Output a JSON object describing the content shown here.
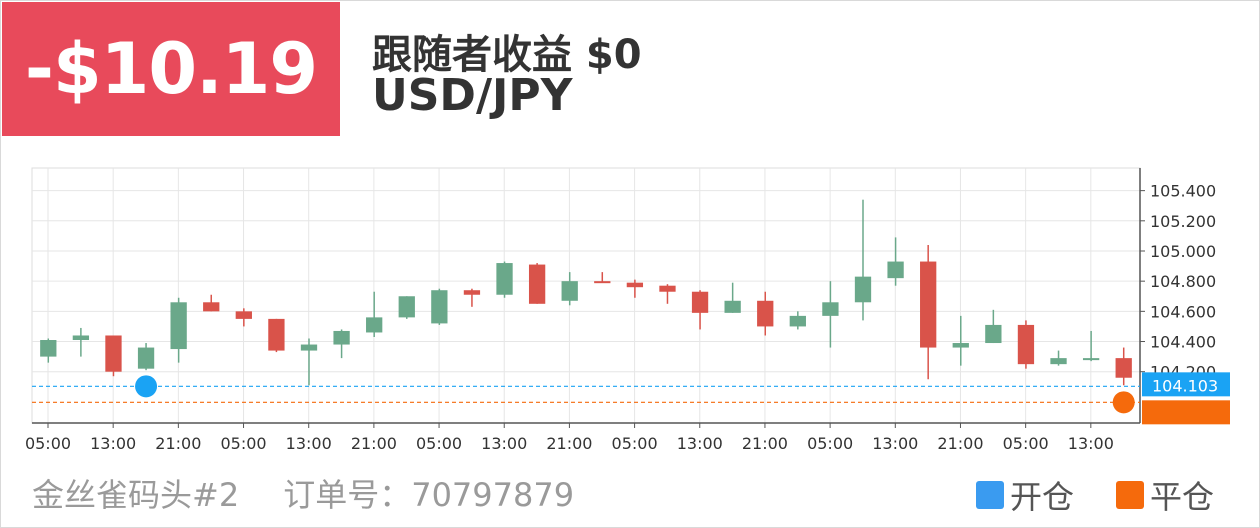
{
  "header": {
    "pnl": "-$10.19",
    "follower_profit": "跟随者收益 $0",
    "symbol": "USD/JPY"
  },
  "footer": {
    "trader": "金丝雀码头#2",
    "order_label": "订单号：",
    "order_id": "70797879"
  },
  "legend": {
    "open_label": "开仓",
    "close_label": "平仓"
  },
  "colors": {
    "pnl_bg": "#e84a5b",
    "up": "#6aa88a",
    "down": "#d9534a",
    "open": "#1aa3f4",
    "close": "#f56a0c"
  },
  "chart_data": {
    "type": "candlestick",
    "x_tick_labels": [
      "05:00",
      "13:00",
      "21:00",
      "05:00",
      "13:00",
      "21:00",
      "05:00",
      "13:00",
      "21:00",
      "05:00",
      "13:00",
      "21:00",
      "05:00",
      "13:00",
      "21:00",
      "05:00",
      "13:00"
    ],
    "y_tick_labels": [
      "104.200",
      "104.400",
      "104.600",
      "104.800",
      "105.000",
      "105.200",
      "105.400"
    ],
    "ylim": [
      103.86,
      105.55
    ],
    "candles": [
      {
        "o": 104.3,
        "h": 104.42,
        "l": 104.26,
        "c": 104.41
      },
      {
        "o": 104.41,
        "h": 104.49,
        "l": 104.3,
        "c": 104.44
      },
      {
        "o": 104.44,
        "h": 104.44,
        "l": 104.17,
        "c": 104.2
      },
      {
        "o": 104.22,
        "h": 104.39,
        "l": 104.21,
        "c": 104.36
      },
      {
        "o": 104.35,
        "h": 104.69,
        "l": 104.26,
        "c": 104.66
      },
      {
        "o": 104.66,
        "h": 104.71,
        "l": 104.6,
        "c": 104.6
      },
      {
        "o": 104.6,
        "h": 104.62,
        "l": 104.5,
        "c": 104.55
      },
      {
        "o": 104.55,
        "h": 104.55,
        "l": 104.33,
        "c": 104.34
      },
      {
        "o": 104.34,
        "h": 104.42,
        "l": 104.11,
        "c": 104.38
      },
      {
        "o": 104.38,
        "h": 104.48,
        "l": 104.29,
        "c": 104.47
      },
      {
        "o": 104.46,
        "h": 104.73,
        "l": 104.43,
        "c": 104.56
      },
      {
        "o": 104.56,
        "h": 104.7,
        "l": 104.55,
        "c": 104.7
      },
      {
        "o": 104.52,
        "h": 104.75,
        "l": 104.51,
        "c": 104.74
      },
      {
        "o": 104.74,
        "h": 104.75,
        "l": 104.63,
        "c": 104.71
      },
      {
        "o": 104.71,
        "h": 104.93,
        "l": 104.69,
        "c": 104.92
      },
      {
        "o": 104.91,
        "h": 104.92,
        "l": 104.65,
        "c": 104.65
      },
      {
        "o": 104.67,
        "h": 104.86,
        "l": 104.64,
        "c": 104.8
      },
      {
        "o": 104.8,
        "h": 104.86,
        "l": 104.79,
        "c": 104.79
      },
      {
        "o": 104.79,
        "h": 104.81,
        "l": 104.69,
        "c": 104.76
      },
      {
        "o": 104.77,
        "h": 104.78,
        "l": 104.65,
        "c": 104.73
      },
      {
        "o": 104.73,
        "h": 104.74,
        "l": 104.48,
        "c": 104.59
      },
      {
        "o": 104.59,
        "h": 104.79,
        "l": 104.59,
        "c": 104.67
      },
      {
        "o": 104.67,
        "h": 104.73,
        "l": 104.44,
        "c": 104.5
      },
      {
        "o": 104.5,
        "h": 104.6,
        "l": 104.48,
        "c": 104.57
      },
      {
        "o": 104.57,
        "h": 104.8,
        "l": 104.36,
        "c": 104.66
      },
      {
        "o": 104.66,
        "h": 105.34,
        "l": 104.54,
        "c": 104.83
      },
      {
        "o": 104.82,
        "h": 105.09,
        "l": 104.77,
        "c": 104.93
      },
      {
        "o": 104.93,
        "h": 105.04,
        "l": 104.15,
        "c": 104.36
      },
      {
        "o": 104.36,
        "h": 104.57,
        "l": 104.24,
        "c": 104.39
      },
      {
        "o": 104.39,
        "h": 104.61,
        "l": 104.39,
        "c": 104.51
      },
      {
        "o": 104.51,
        "h": 104.54,
        "l": 104.22,
        "c": 104.25
      },
      {
        "o": 104.25,
        "h": 104.34,
        "l": 104.24,
        "c": 104.29
      },
      {
        "o": 104.28,
        "h": 104.47,
        "l": 104.27,
        "c": 104.29
      },
      {
        "o": 104.29,
        "h": 104.36,
        "l": 104.11,
        "c": 104.16
      }
    ],
    "open_price": 104.103,
    "open_price_label": "104.103",
    "close_price": 103.997,
    "open_candle_index": 3,
    "close_candle_index": 33
  }
}
